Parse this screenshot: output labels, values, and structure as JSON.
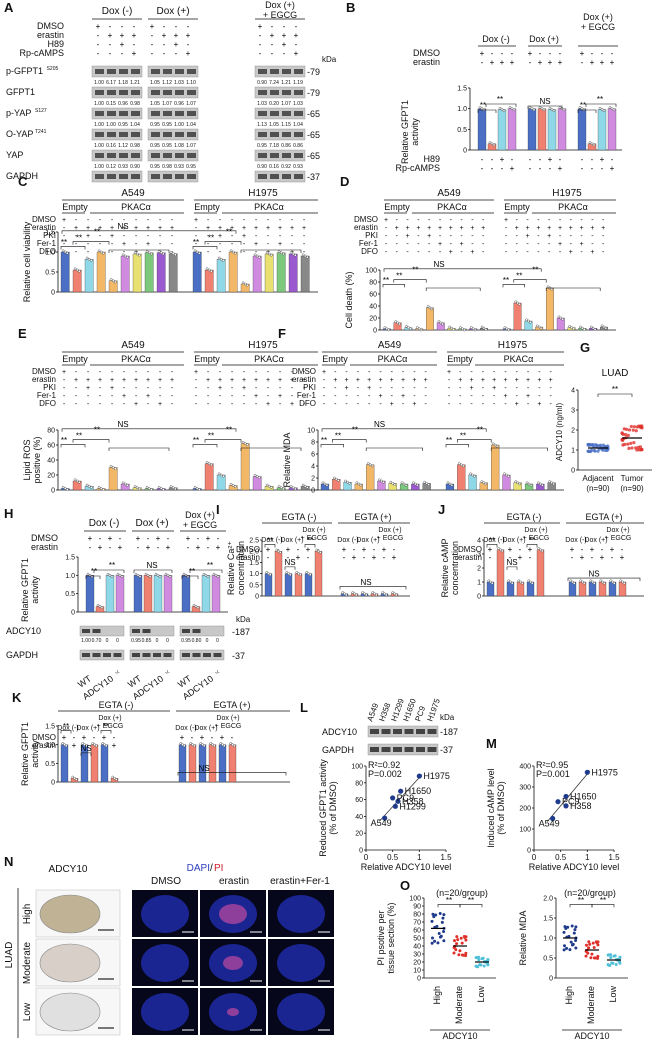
{
  "panel_labels": [
    "A",
    "B",
    "C",
    "D",
    "E",
    "F",
    "G",
    "H",
    "I",
    "J",
    "K",
    "L",
    "M",
    "N",
    "O"
  ],
  "groups_dox": [
    "Dox (-)",
    "Dox (+)",
    "Dox (+)\n+ EGCG"
  ],
  "groups_cells": [
    "A549",
    "H1975"
  ],
  "groups_vec": [
    "Empty",
    "PKACα"
  ],
  "groups_egta": [
    "EGTA (-)",
    "EGTA (+)"
  ],
  "sub_dox": [
    "Dox (-)",
    "Dox (+)",
    "Dox (+)\n+ EGCG"
  ],
  "sym": {
    "plus": "+",
    "minus": "-",
    "sig": "**",
    "ns": "NS",
    "sig1": "*"
  },
  "panelA": {
    "rows": [
      "DMSO",
      "erastin",
      "H89",
      "Rp-cAMPS"
    ],
    "row_signs": [
      [
        "+",
        "-",
        "-",
        "-"
      ],
      [
        "-",
        "+",
        "+",
        "+"
      ],
      [
        "-",
        "-",
        "+",
        "-"
      ],
      [
        "-",
        "-",
        "-",
        "+"
      ]
    ],
    "kda": "kDa",
    "blots": [
      {
        "label": "p-GFPT1",
        "sup": "S205",
        "mw": "-79",
        "q": [
          [
            "1.00",
            "6.17",
            "1.18",
            "1.21"
          ],
          [
            "1.05",
            "1.12",
            "1.03",
            "1.10"
          ],
          [
            "0.90",
            "7.24",
            "1.21",
            "1.19"
          ]
        ]
      },
      {
        "label": "GFPT1",
        "sup": "",
        "mw": "-79",
        "q": [
          [
            "1.00",
            "0.15",
            "0.96",
            "0.98"
          ],
          [
            "1.05",
            "1.07",
            "0.96",
            "1.07"
          ],
          [
            "1.03",
            "0.20",
            "1.07",
            "1.03"
          ]
        ]
      },
      {
        "label": "p-YAP",
        "sup": "S127",
        "mw": "-65",
        "q": [
          [
            "1.00",
            "1.00",
            "0.95",
            "1.04"
          ],
          [
            "0.95",
            "0.95",
            "1.00",
            "1.04"
          ],
          [
            "1.13",
            "1.05",
            "1.15",
            "1.04"
          ]
        ]
      },
      {
        "label": "O-YAP",
        "sup": "T241",
        "mw": "-65",
        "q": [
          [
            "1.00",
            "0.16",
            "1.12",
            "0.98"
          ],
          [
            "0.95",
            "0.95",
            "1.08",
            "1.07"
          ],
          [
            "0.95",
            "7.18",
            "0.86",
            "0.86"
          ]
        ]
      },
      {
        "label": "YAP",
        "sup": "",
        "mw": "-65",
        "q": [
          [
            "1.00",
            "0.12",
            "0.93",
            "0.90"
          ],
          [
            "0.95",
            "0.98",
            "0.93",
            "0.95"
          ],
          [
            "0.90",
            "0.16",
            "0.92",
            "0.93"
          ]
        ]
      },
      {
        "label": "GAPDH",
        "sup": "",
        "mw": "-37",
        "q": []
      }
    ]
  },
  "panelB": {
    "rows": [
      "DMSO",
      "erastin"
    ],
    "row_signs": [
      [
        "+",
        "-",
        "-",
        "-"
      ],
      [
        "-",
        "+",
        "+",
        "+"
      ]
    ],
    "bottom_rows": [
      "H89",
      "Rp-cAMPS"
    ],
    "bottom_signs": [
      [
        "-",
        "-",
        "+",
        "-"
      ],
      [
        "-",
        "-",
        "-",
        "+"
      ]
    ],
    "ylabel": "Relative GFPT1\nactivity",
    "ylim": [
      0,
      1.5
    ],
    "ticks": [
      "0",
      "0.5",
      "1.0",
      "1.5"
    ],
    "values": [
      [
        1.0,
        0.15,
        0.98,
        1.0
      ],
      [
        1.0,
        1.0,
        0.98,
        1.0
      ],
      [
        1.0,
        0.15,
        0.98,
        1.0
      ]
    ]
  },
  "panelC": {
    "rows": [
      "DMSO",
      "erastin",
      "PKI",
      "Fer-1",
      "DFO"
    ],
    "ylabel": "Relative cell viability",
    "ylim": [
      0,
      1.5
    ],
    "ticks": [
      "0",
      "0.5",
      "1.0",
      "1.5"
    ],
    "values": [
      [
        1.0,
        0.55,
        0.82,
        1.0,
        0.28,
        0.9,
        0.95,
        0.98,
        0.98,
        0.96
      ],
      [
        1.0,
        0.55,
        0.82,
        1.0,
        0.2,
        0.9,
        0.95,
        0.98,
        0.95,
        0.9
      ]
    ]
  },
  "panelD": {
    "rows": [
      "DMSO",
      "erastin",
      "PKI",
      "Fer-1",
      "DFO"
    ],
    "ylabel": "Cell death (%)",
    "ylim": [
      0,
      100
    ],
    "ticks": [
      "0",
      "20",
      "40",
      "60",
      "80",
      "100"
    ],
    "values": [
      [
        2,
        12,
        4,
        2,
        37,
        12,
        3,
        2,
        2,
        3
      ],
      [
        2,
        45,
        15,
        5,
        70,
        20,
        4,
        3,
        3,
        5
      ]
    ]
  },
  "panelE": {
    "rows": [
      "DMSO",
      "erastin",
      "PKI",
      "Fer-1",
      "DFO"
    ],
    "ylabel": "Lipid ROS\npositive (%)",
    "ylim": [
      0,
      80
    ],
    "ticks": [
      "0",
      "20",
      "40",
      "60",
      "80"
    ],
    "values": [
      [
        2,
        12,
        5,
        2,
        30,
        8,
        3,
        2,
        2,
        3
      ],
      [
        2,
        35,
        20,
        6,
        62,
        18,
        5,
        3,
        3,
        5
      ]
    ]
  },
  "panelF": {
    "rows": [
      "DMSO",
      "erastin",
      "PKI",
      "Fer-1",
      "DFO"
    ],
    "ylabel": "Relative MDA",
    "ylim": [
      0,
      10
    ],
    "ticks": [
      "0",
      "2",
      "4",
      "6",
      "8",
      "10"
    ],
    "values": [
      [
        1,
        1.8,
        1.3,
        1,
        4.2,
        1.5,
        1.1,
        1,
        1,
        1.1
      ],
      [
        1,
        4.2,
        2.5,
        1.2,
        7.5,
        2.5,
        1.2,
        1,
        1,
        1.2
      ]
    ]
  },
  "panelG": {
    "title": "LUAD",
    "ylabel": "ADCY10 (ng/ml)",
    "ylim": [
      0,
      4
    ],
    "ticks": [
      "0",
      "1",
      "2",
      "3",
      "4"
    ],
    "categories": [
      "Adjacent\n(n=90)",
      "Tumor\n(n=90)"
    ],
    "means": [
      1.1,
      1.6
    ]
  },
  "panelH": {
    "rows": [
      "DMSO",
      "erastin"
    ],
    "row_signs": [
      [
        "+",
        "-",
        "+",
        "-"
      ],
      [
        "-",
        "+",
        "-",
        "+"
      ]
    ],
    "ylabel": "Relative GFPT1\nactivity",
    "ylim": [
      0,
      1.5
    ],
    "ticks": [
      "0",
      "0.5",
      "1.0",
      "1.5"
    ],
    "values": [
      [
        1.0,
        0.15,
        1.0,
        1.0
      ],
      [
        1.0,
        1.0,
        1.0,
        1.0
      ],
      [
        1.0,
        0.15,
        1.0,
        1.0
      ]
    ],
    "blots": [
      {
        "label": "ADCY10",
        "mw": "-187"
      },
      {
        "label": "GAPDH",
        "mw": "-37"
      }
    ],
    "kda": "kDa",
    "q": [
      [
        "1.00",
        "0.70",
        "0",
        "0"
      ],
      [
        "0.95",
        "0.85",
        "0",
        "0"
      ],
      [
        "0.95",
        "0.80",
        "0",
        "0"
      ]
    ],
    "genotypes": [
      "WT",
      "ADCY10",
      "WT",
      "ADCY10",
      "WT",
      "ADCY10"
    ],
    "geno_sup": "-/-"
  },
  "panelI": {
    "ylabel": "Relative Ca²⁺\nconcentration",
    "ylim": [
      0,
      2.5
    ],
    "ticks": [
      "0",
      "0.5",
      "1.0",
      "1.5",
      "2.0",
      "2.5"
    ],
    "values": [
      [
        1.0,
        2.0,
        1.0,
        1.0,
        1.0,
        2.0
      ],
      [
        0.1,
        0.1,
        0.1,
        0.1,
        0.1,
        0.1
      ]
    ]
  },
  "panelJ": {
    "ylabel": "Relative cAMP\nconcentration",
    "ylim": [
      0,
      4
    ],
    "ticks": [
      "0",
      "1",
      "2",
      "3",
      "4"
    ],
    "values": [
      [
        1.0,
        3.3,
        1.0,
        1.0,
        1.0,
        3.3
      ],
      [
        1.0,
        1.0,
        1.0,
        1.0,
        1.0,
        1.0
      ]
    ]
  },
  "panelK": {
    "ylabel": "Relative GFPT1\nactivity",
    "ylim": [
      0,
      1.5
    ],
    "ticks": [
      "0",
      "0.5",
      "1.0",
      "1.5"
    ],
    "values": [
      [
        1.0,
        0.1,
        1.0,
        1.0,
        1.0,
        0.1
      ],
      [
        1.0,
        1.0,
        1.0,
        1.0,
        1.0,
        1.0
      ]
    ]
  },
  "rows_ds": [
    "DMSO",
    "erastin"
  ],
  "signs_ds": [
    [
      "+",
      "-",
      "+",
      "-",
      "+",
      "-"
    ],
    [
      "-",
      "+",
      "-",
      "+",
      "-",
      "+"
    ]
  ],
  "panelL": {
    "cells": [
      "A549",
      "H358",
      "H1299",
      "H1650",
      "PC9",
      "H1975"
    ],
    "blots": [
      {
        "label": "ADCY10",
        "mw": "-187"
      },
      {
        "label": "GAPDH",
        "mw": "-37"
      }
    ],
    "kda": "kDa",
    "r2": "R²=0.92",
    "p": "P=0.002",
    "ylabel": "Reduced GFPT1 activity\n(% of DMSO)",
    "xlabel": "Relative ADCY10 level",
    "ticks_x": [
      "0",
      "0.5",
      "1",
      "1.5"
    ],
    "ticks_y": [
      "0",
      "20",
      "40",
      "60",
      "80",
      "100"
    ],
    "points": [
      {
        "name": "A549",
        "x": 0.35,
        "y": 38
      },
      {
        "name": "H1299",
        "x": 0.55,
        "y": 52
      },
      {
        "name": "H358",
        "x": 0.6,
        "y": 58
      },
      {
        "name": "PC9",
        "x": 0.5,
        "y": 62
      },
      {
        "name": "H1650",
        "x": 0.65,
        "y": 70
      },
      {
        "name": "H1975",
        "x": 1.0,
        "y": 88
      }
    ]
  },
  "panelM": {
    "r2": "R²=0.95",
    "p": "P=0.001",
    "ylabel": "Induced cAMP level\n(% of DMSO)",
    "xlabel": "Relative ADCY10 level",
    "ticks_x": [
      "0",
      "0.5",
      "1",
      "1.5"
    ],
    "ticks_y": [
      "0",
      "100",
      "200",
      "300",
      "400"
    ],
    "points": [
      {
        "name": "A549",
        "x": 0.35,
        "y": 150
      },
      {
        "name": "H358",
        "x": 0.6,
        "y": 210
      },
      {
        "name": "PC9",
        "x": 0.45,
        "y": 230
      },
      {
        "name": "H1650",
        "x": 0.6,
        "y": 255
      },
      {
        "name": "H1975",
        "x": 1.0,
        "y": 370
      }
    ]
  },
  "panelN": {
    "col_headers": [
      "ADCY10",
      "DMSO",
      "erastin",
      "erastin+Fer-1"
    ],
    "stain": "DAPI/PI",
    "stain_a": "DAPI",
    "stain_sep": "/",
    "stain_b": "PI",
    "group": "LUAD",
    "rows": [
      "High",
      "Moderate",
      "Low"
    ]
  },
  "panelO": {
    "n_label": "(n=20/group)",
    "ylabel1": "PI psotive per\ntissue section (%)",
    "ylabel2": "Relative MDA",
    "ticks1": [
      "0",
      "10",
      "20",
      "30",
      "40",
      "50",
      "60",
      "70",
      "80",
      "90",
      "100"
    ],
    "ticks2": [
      "0",
      "0.5",
      "1.0",
      "1.5",
      "2.0"
    ],
    "categories": [
      "High",
      "Moderate",
      "Low"
    ],
    "footer_top": "ADCY10",
    "footer_bottom": "LUAD",
    "means1": [
      62,
      40,
      20
    ],
    "means2": [
      1.0,
      0.7,
      0.45
    ]
  },
  "colors": {
    "blue": "#4a6fc4",
    "pink": "#f08070",
    "cyan": "#8fd8e8",
    "violet": "#d08ae0",
    "orange": "#f2b868",
    "purple": "#9b59d0",
    "yellow": "#e8e070",
    "green": "#7cc87c",
    "gray": "#888888",
    "dark": "#333333",
    "red": "#e0302a",
    "navy": "#1f3b8c"
  }
}
